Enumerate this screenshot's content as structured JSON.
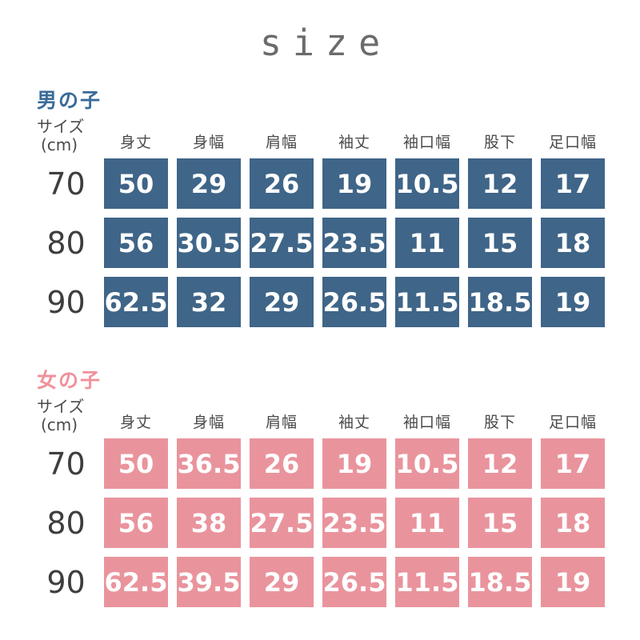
{
  "title": "size",
  "size_label": {
    "line1": "サイズ",
    "line2": "(cm)"
  },
  "columns": [
    "身丈",
    "身幅",
    "肩幅",
    "袖丈",
    "袖口幅",
    "股下",
    "足口幅"
  ],
  "colors": {
    "boys_cell": "#3f6588",
    "boys_title": "#3a6b9a",
    "girls_cell": "#e9949d",
    "girls_title": "#f0919b",
    "header_text": "#4a4a4a",
    "row_label_text": "#3e3e3e",
    "main_title_text": "#6b6b6b"
  },
  "boys": {
    "section_title": "男の子",
    "rows": [
      {
        "size": "70",
        "values": [
          "50",
          "29",
          "26",
          "19",
          "10.5",
          "12",
          "17"
        ]
      },
      {
        "size": "80",
        "values": [
          "56",
          "30.5",
          "27.5",
          "23.5",
          "11",
          "15",
          "18"
        ]
      },
      {
        "size": "90",
        "values": [
          "62.5",
          "32",
          "29",
          "26.5",
          "11.5",
          "18.5",
          "19"
        ]
      }
    ]
  },
  "girls": {
    "section_title": "女の子",
    "rows": [
      {
        "size": "70",
        "values": [
          "50",
          "36.5",
          "26",
          "19",
          "10.5",
          "12",
          "17"
        ]
      },
      {
        "size": "80",
        "values": [
          "56",
          "38",
          "27.5",
          "23.5",
          "11",
          "15",
          "18"
        ]
      },
      {
        "size": "90",
        "values": [
          "62.5",
          "39.5",
          "29",
          "26.5",
          "11.5",
          "18.5",
          "19"
        ]
      }
    ]
  },
  "chart_data": [
    {
      "type": "table",
      "title": "男の子",
      "columns": [
        "サイズ(cm)",
        "身丈",
        "身幅",
        "肩幅",
        "袖丈",
        "袖口幅",
        "股下",
        "足口幅"
      ],
      "rows": [
        [
          70,
          50,
          29,
          26,
          19,
          10.5,
          12,
          17
        ],
        [
          80,
          56,
          30.5,
          27.5,
          23.5,
          11,
          15,
          18
        ],
        [
          90,
          62.5,
          32,
          29,
          26.5,
          11.5,
          18.5,
          19
        ]
      ]
    },
    {
      "type": "table",
      "title": "女の子",
      "columns": [
        "サイズ(cm)",
        "身丈",
        "身幅",
        "肩幅",
        "袖丈",
        "袖口幅",
        "股下",
        "足口幅"
      ],
      "rows": [
        [
          70,
          50,
          36.5,
          26,
          19,
          10.5,
          12,
          17
        ],
        [
          80,
          56,
          38,
          27.5,
          23.5,
          11,
          15,
          18
        ],
        [
          90,
          62.5,
          39.5,
          29,
          26.5,
          11.5,
          18.5,
          19
        ]
      ]
    }
  ]
}
